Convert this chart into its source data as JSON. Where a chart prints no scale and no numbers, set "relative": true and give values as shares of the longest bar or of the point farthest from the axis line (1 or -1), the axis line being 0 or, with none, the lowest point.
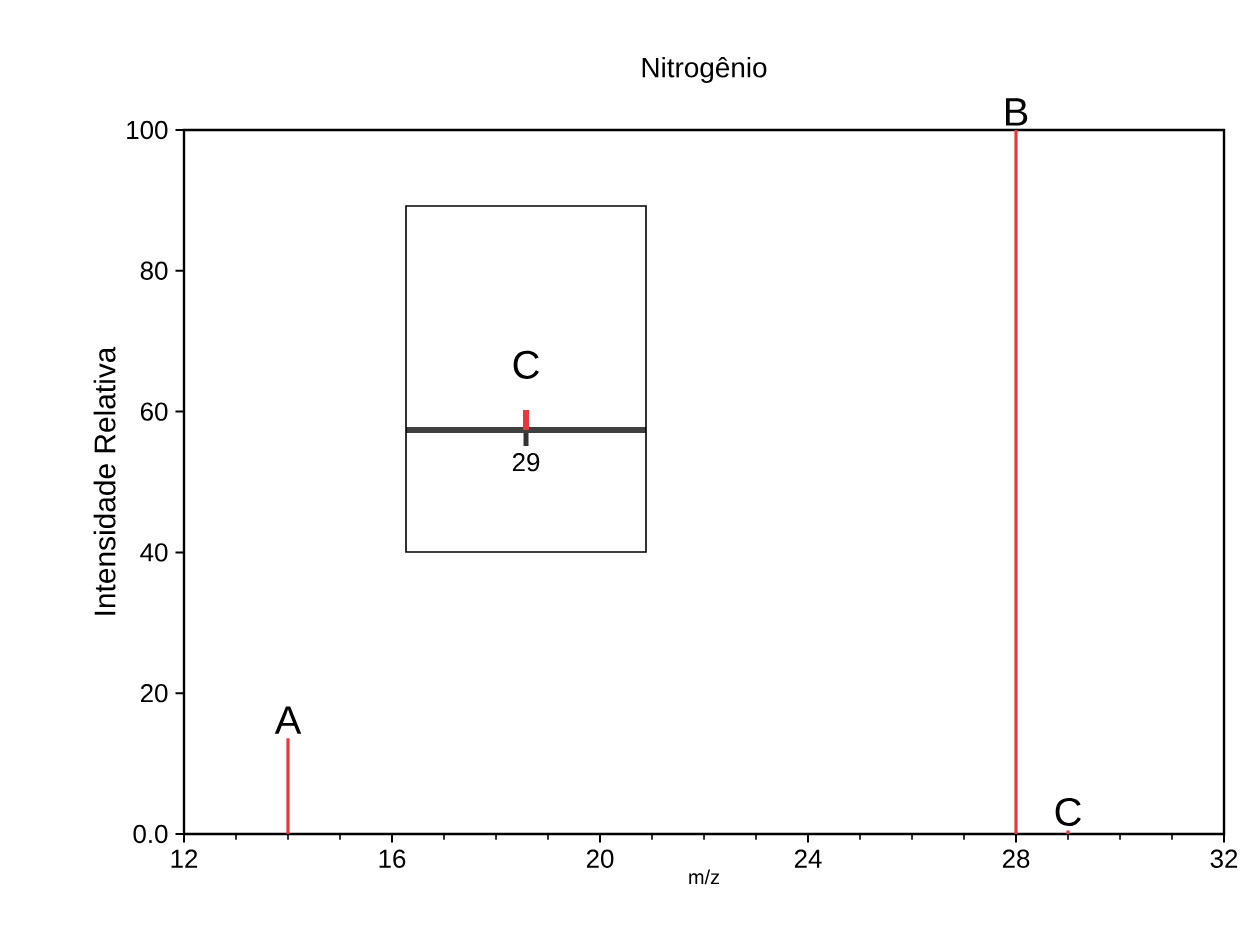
{
  "chart_data": [
    {
      "type": "bar",
      "title": "Nitrogênio",
      "xlabel": "m/z",
      "ylabel": "Intensidade Relativa",
      "x": [
        14,
        28,
        29
      ],
      "values": [
        13.6,
        100,
        0.5
      ],
      "color": "#e8383d",
      "xlim": [
        12,
        32
      ],
      "xticks": [
        12,
        16,
        20,
        24,
        28,
        32
      ],
      "ylim": [
        0,
        100
      ],
      "yticks": [
        {
          "value": 0,
          "label": "0.0"
        },
        20,
        40,
        60,
        80,
        100
      ],
      "annotations": [
        {
          "text": "A",
          "x": 14,
          "y": 13.6
        },
        {
          "text": "B",
          "x": 28,
          "y": 100
        },
        {
          "text": "C",
          "x": 29,
          "y": 0.5
        }
      ]
    },
    {
      "type": "bar",
      "categories": [
        "29"
      ],
      "values": [
        1
      ],
      "color": "#e8383d",
      "relative": true,
      "annotations": [
        "C"
      ]
    }
  ]
}
